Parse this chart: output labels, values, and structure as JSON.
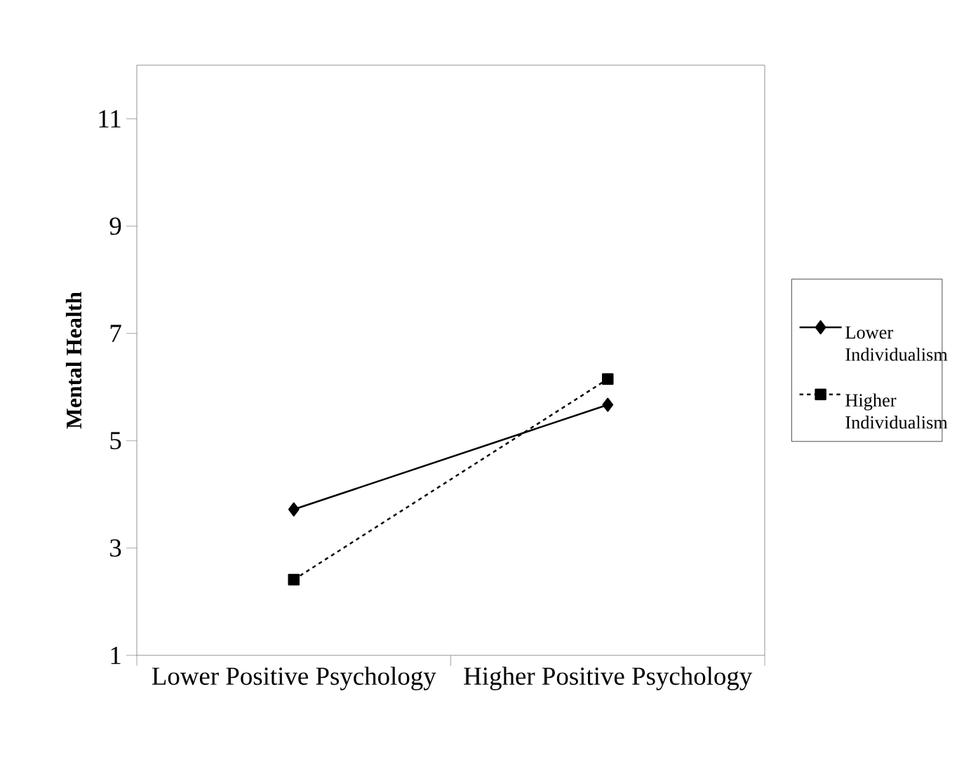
{
  "chart_data": {
    "type": "line",
    "ylabel": "Mental Health",
    "categories": [
      "Lower Positive Psychology",
      "Higher Positive Psychology"
    ],
    "series": [
      {
        "name": "Lower Individualism",
        "color": "#000000",
        "values": [
          3.72,
          5.67
        ],
        "marker": "diamond",
        "line_style": "solid"
      },
      {
        "name": "Higher Individualism",
        "color": "#000000",
        "values": [
          2.41,
          6.15
        ],
        "marker": "square",
        "line_style": "dashed"
      }
    ],
    "ylim": [
      1,
      12
    ],
    "yticks": [
      1,
      3,
      5,
      7,
      9,
      11
    ],
    "grid": false,
    "legend": "right"
  }
}
